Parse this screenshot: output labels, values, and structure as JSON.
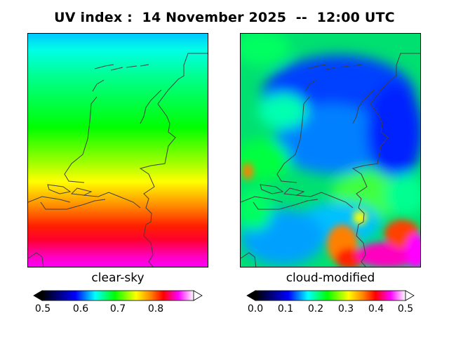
{
  "title": "UV index :  14 November 2025  --  12:00 UTC",
  "panels": [
    {
      "label": "clear-sky",
      "colorbar": {
        "ticks": [
          "0.5",
          "0.6",
          "0.7",
          "0.8"
        ],
        "vmin": 0.5,
        "vmax": 0.9,
        "tick_values": [
          0.5,
          0.6,
          0.7,
          0.8
        ]
      }
    },
    {
      "label": "cloud-modified",
      "colorbar": {
        "ticks": [
          "0.0",
          "0.1",
          "0.2",
          "0.3",
          "0.4",
          "0.5"
        ],
        "vmin": 0.0,
        "vmax": 0.5,
        "tick_values": [
          0.0,
          0.1,
          0.2,
          0.3,
          0.4,
          0.5
        ]
      }
    }
  ],
  "colors": {
    "border": "#000000",
    "coastline": "#404040",
    "scale": [
      "#000000",
      "#00008b",
      "#0000ff",
      "#00ffff",
      "#00ff00",
      "#ffff00",
      "#ff8000",
      "#ff0000",
      "#ff00ff",
      "#ffffff"
    ]
  }
}
